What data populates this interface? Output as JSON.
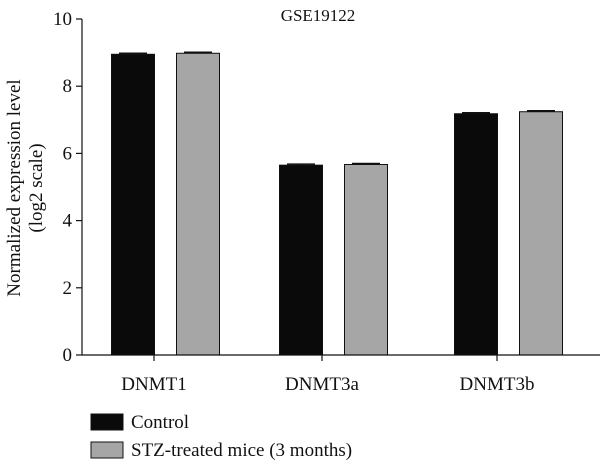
{
  "chart_data": {
    "type": "bar",
    "title": "GSE19122",
    "ylabel_line1": "Normalized expression level",
    "ylabel_line2": "(log2 scale)",
    "xlabel": "",
    "categories": [
      "DNMT1",
      "DNMT3a",
      "DNMT3b"
    ],
    "ylim": [
      0,
      10
    ],
    "yticks": [
      0,
      2,
      4,
      6,
      8,
      10
    ],
    "grid": false,
    "legend_position": "bottom-left",
    "series": [
      {
        "name": "Control",
        "color": "#0a0a0a",
        "values": [
          8.95,
          5.65,
          7.18
        ],
        "errors": [
          0.03,
          0.03,
          0.03
        ]
      },
      {
        "name": "STZ-treated mice (3 months)",
        "color": "#a6a6a6",
        "values": [
          8.98,
          5.67,
          7.24
        ],
        "errors": [
          0.03,
          0.03,
          0.03
        ]
      }
    ]
  }
}
